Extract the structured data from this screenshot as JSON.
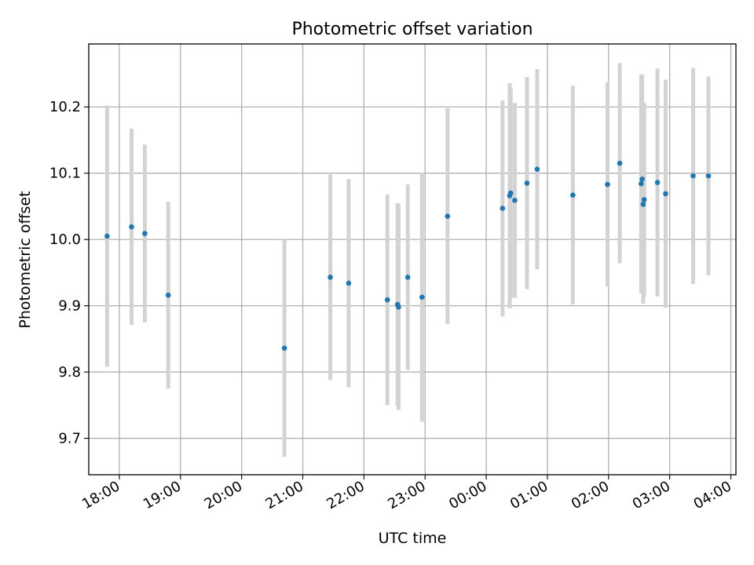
{
  "chart_data": {
    "type": "scatter",
    "title": "Photometric offset variation",
    "xlabel": "UTC time",
    "ylabel": "Photometric offset",
    "x_unit": "UTC time of day (observation spans midnight)",
    "xlim": [
      "17:30",
      "04:05"
    ],
    "ylim": [
      9.645,
      10.295
    ],
    "x_ticks": [
      "18:00",
      "19:00",
      "20:00",
      "21:00",
      "22:00",
      "23:00",
      "00:00",
      "01:00",
      "02:00",
      "03:00",
      "04:00"
    ],
    "y_ticks": [
      "9.7",
      "9.8",
      "9.9",
      "10.0",
      "10.1",
      "10.2"
    ],
    "grid": true,
    "series": [
      {
        "marker_color": "#1f77b4",
        "errorbar_color": "#d3d3d3",
        "points": [
          {
            "x": "17:48",
            "y": 10.005,
            "err": 0.197
          },
          {
            "x": "18:12",
            "y": 10.019,
            "err": 0.148
          },
          {
            "x": "18:25",
            "y": 10.009,
            "err": 0.134
          },
          {
            "x": "18:48",
            "y": 9.916,
            "err": 0.141
          },
          {
            "x": "20:42",
            "y": 9.836,
            "err": 0.164
          },
          {
            "x": "21:27",
            "y": 9.943,
            "err": 0.155
          },
          {
            "x": "21:45",
            "y": 9.934,
            "err": 0.157
          },
          {
            "x": "22:23",
            "y": 9.909,
            "err": 0.159
          },
          {
            "x": "22:33",
            "y": 9.902,
            "err": 0.153
          },
          {
            "x": "22:34",
            "y": 9.898,
            "err": 0.155
          },
          {
            "x": "22:43",
            "y": 9.943,
            "err": 0.14
          },
          {
            "x": "22:57",
            "y": 9.913,
            "err": 0.188
          },
          {
            "x": "23:22",
            "y": 10.035,
            "err": 0.163
          },
          {
            "x": "00:16",
            "y": 10.047,
            "err": 0.163
          },
          {
            "x": "00:23",
            "y": 10.066,
            "err": 0.17
          },
          {
            "x": "00:24",
            "y": 10.07,
            "err": 0.159
          },
          {
            "x": "00:28",
            "y": 10.059,
            "err": 0.147
          },
          {
            "x": "00:40",
            "y": 10.085,
            "err": 0.16
          },
          {
            "x": "00:50",
            "y": 10.106,
            "err": 0.151
          },
          {
            "x": "01:25",
            "y": 10.067,
            "err": 0.165
          },
          {
            "x": "01:59",
            "y": 10.083,
            "err": 0.154
          },
          {
            "x": "02:11",
            "y": 10.115,
            "err": 0.151
          },
          {
            "x": "02:32",
            "y": 10.084,
            "err": 0.165
          },
          {
            "x": "02:33",
            "y": 10.091,
            "err": 0.158
          },
          {
            "x": "02:34",
            "y": 10.053,
            "err": 0.15
          },
          {
            "x": "02:35",
            "y": 10.06,
            "err": 0.146
          },
          {
            "x": "02:48",
            "y": 10.086,
            "err": 0.172
          },
          {
            "x": "02:56",
            "y": 10.069,
            "err": 0.172
          },
          {
            "x": "03:23",
            "y": 10.096,
            "err": 0.163
          },
          {
            "x": "03:38",
            "y": 10.096,
            "err": 0.15
          }
        ]
      }
    ]
  }
}
